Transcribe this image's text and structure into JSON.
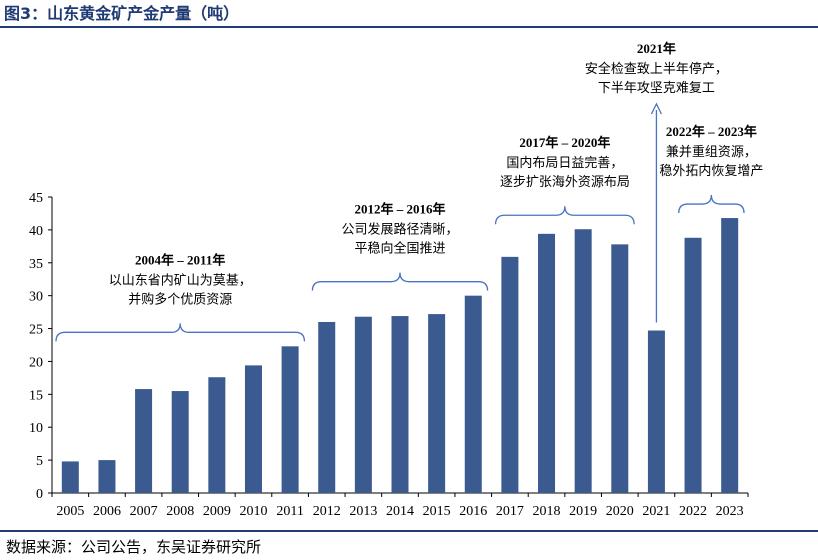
{
  "figure": {
    "title": "图3：山东黄金矿产金产量（吨）",
    "source": "数据来源：公司公告，东吴证券研究所"
  },
  "chart_data": {
    "type": "bar",
    "title": "山东黄金矿产金产量（吨）",
    "xlabel": "",
    "ylabel": "",
    "ylim": [
      0,
      45
    ],
    "yticks": [
      0,
      5,
      10,
      15,
      20,
      25,
      30,
      35,
      40,
      45
    ],
    "grid": false,
    "bar_color": "#3b5a8f",
    "annotation_color": "#4a72c4",
    "categories": [
      "2005",
      "2006",
      "2007",
      "2008",
      "2009",
      "2010",
      "2011",
      "2012",
      "2013",
      "2014",
      "2015",
      "2016",
      "2017",
      "2018",
      "2019",
      "2020",
      "2021",
      "2022",
      "2023"
    ],
    "values": [
      4.8,
      5.0,
      15.8,
      15.5,
      17.6,
      19.4,
      22.3,
      26.0,
      26.8,
      26.9,
      27.2,
      30.0,
      35.9,
      39.4,
      40.1,
      37.8,
      24.7,
      38.8,
      41.8
    ],
    "annotations": [
      {
        "heading": "2004年 – 2011年",
        "lines": [
          "以山东省内矿山为莫基，",
          "并购多个优质资源"
        ],
        "kind": "brace",
        "from": "2005",
        "to": "2011"
      },
      {
        "heading": "2012年 – 2016年",
        "lines": [
          "公司发展路径清晰，",
          "平稳向全国推进"
        ],
        "kind": "brace",
        "from": "2012",
        "to": "2016"
      },
      {
        "heading": "2017年 – 2020年",
        "lines": [
          "国内布局日益完善，",
          "逐步扩张海外资源布局"
        ],
        "kind": "brace",
        "from": "2017",
        "to": "2020"
      },
      {
        "heading": "2021年",
        "lines": [
          "安全检查致上半年停产，",
          "下半年攻坚克难复工"
        ],
        "kind": "arrow",
        "from": "2021",
        "to": "2021"
      },
      {
        "heading": "2022年 – 2023年",
        "lines": [
          "兼并重组资源，",
          "稳外拓内恢复增产"
        ],
        "kind": "brace",
        "from": "2022",
        "to": "2023"
      }
    ]
  }
}
